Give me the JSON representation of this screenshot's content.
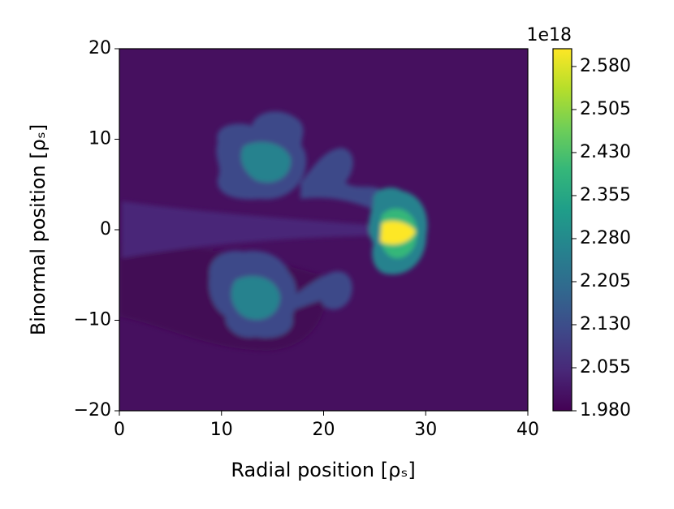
{
  "chart_data": {
    "type": "contour",
    "xlabel": "Radial position [ρₛ]",
    "ylabel": "Binormal position [ρₛ]",
    "xlim": [
      0,
      40
    ],
    "xticks": [
      0,
      10,
      20,
      30,
      40
    ],
    "ylim": [
      -20,
      20
    ],
    "yticks": [
      {
        "value": -20,
        "label": "−20"
      },
      {
        "value": -10,
        "label": "−10"
      },
      0,
      10,
      20
    ],
    "colorbar": {
      "offset_label": "1e18",
      "lim": [
        1.98,
        2.611
      ],
      "ticks": [
        {
          "value": 1.98,
          "label": "1.980"
        },
        {
          "value": 2.055,
          "label": "2.055"
        },
        {
          "value": 2.13,
          "label": "2.130"
        },
        {
          "value": 2.205,
          "label": "2.205"
        },
        {
          "value": 2.28,
          "label": "2.280"
        },
        {
          "value": 2.355,
          "label": "2.355"
        },
        {
          "value": 2.43,
          "label": "2.430"
        },
        {
          "value": 2.505,
          "label": "2.505"
        },
        {
          "value": 2.58,
          "label": "2.580"
        }
      ],
      "colors": [
        "#440154",
        "#482878",
        "#3e4989",
        "#31688e",
        "#26828e",
        "#1f9e89",
        "#35b779",
        "#6ece58",
        "#b5de2b",
        "#fde725"
      ]
    }
  }
}
